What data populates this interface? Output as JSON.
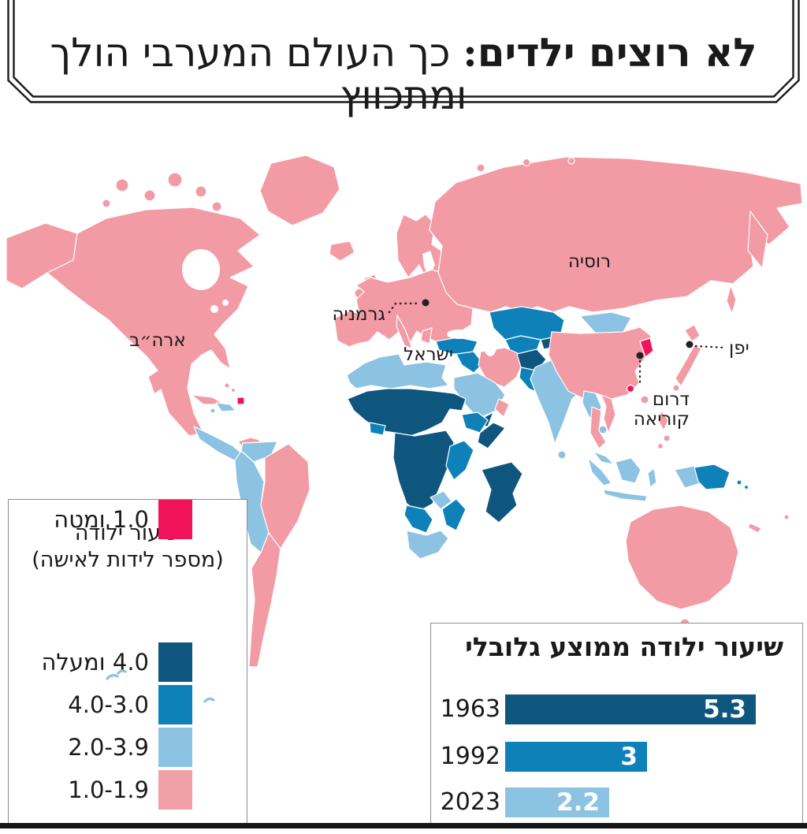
{
  "header": {
    "title_bold": "לא רוצים ילדים:",
    "title_rest": " כך העולם המערבי הולך ומתכווץ"
  },
  "map": {
    "labels": {
      "russia": "רוסיה",
      "usa": "ארה״ב",
      "germany": "גרמניה",
      "israel": "ישראל",
      "japan": "יפן",
      "south_korea_1": "דרום",
      "south_korea_2": "קוריאה"
    }
  },
  "legend": {
    "title_line1": "שיעור ילודה",
    "title_line2": "(מספר לידות לאישה)",
    "items": [
      {
        "label": "4.0 ומעלה",
        "color": "#0F567F"
      },
      {
        "label": "4.0-3.0",
        "color": "#0E81B9"
      },
      {
        "label": "2.0-3.9",
        "color": "#8CC2E2"
      },
      {
        "label": "1.0-1.9",
        "color": "#F2A0A7"
      },
      {
        "label": "1.0 ומטה",
        "color": "#F0135C"
      }
    ]
  },
  "chart_data": {
    "type": "bar",
    "orientation": "horizontal",
    "title": "שיעור ילודה ממוצע גלובלי",
    "categories": [
      "1963",
      "1992",
      "2023"
    ],
    "values": [
      5.3,
      3,
      2.2
    ],
    "value_labels": [
      "5.3",
      "3",
      "2.2"
    ],
    "bar_colors": [
      "#0F567F",
      "#0E81B9",
      "#8CC2E2"
    ],
    "xlim": [
      0,
      5.3
    ],
    "grid": false,
    "legend_position": "none"
  },
  "colors": {
    "pink": "#F29BA4",
    "light_blue": "#8CC2E2",
    "medium_blue": "#0E81B9",
    "dark_blue": "#0F567F",
    "crimson": "#F0135C",
    "ocean": "#FFFFFF"
  }
}
